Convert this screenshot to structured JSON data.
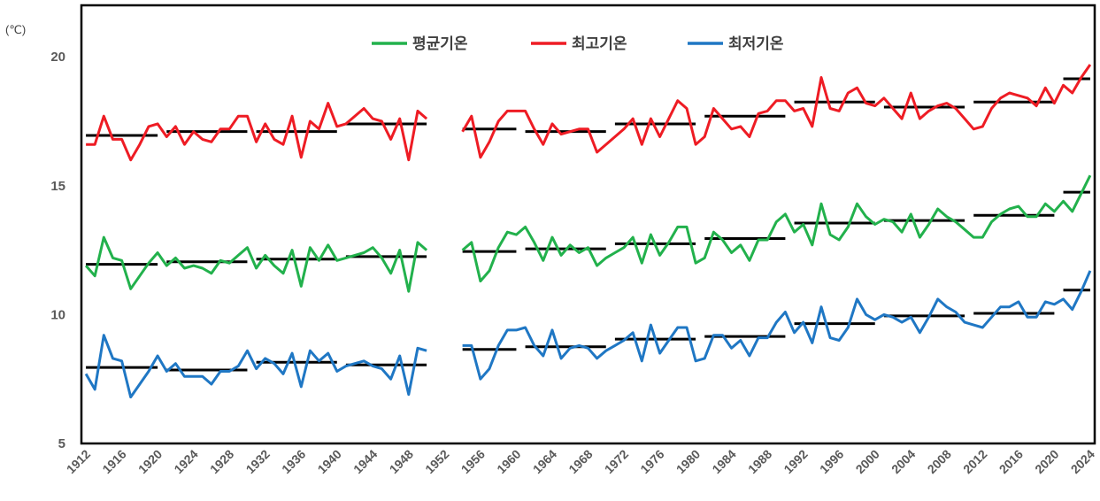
{
  "chart_data": {
    "type": "line",
    "unit_label": "(℃)",
    "title": "",
    "xlabel": "",
    "ylabel": "",
    "ylim": [
      5,
      22
    ],
    "y_ticks": [
      "20",
      "15",
      "10",
      "5"
    ],
    "y_tick_values": [
      20,
      15,
      10,
      5
    ],
    "x_range": [
      1912,
      2024
    ],
    "x_ticks": [
      "1912",
      "1916",
      "1920",
      "1924",
      "1928",
      "1932",
      "1936",
      "1940",
      "1944",
      "1948",
      "1952",
      "1956",
      "1960",
      "1964",
      "1968",
      "1972",
      "1976",
      "1980",
      "1984",
      "1988",
      "1992",
      "1996",
      "2000",
      "2004",
      "2008",
      "2012",
      "2016",
      "2020",
      "2024"
    ],
    "legend_position": "top-center",
    "grid": false,
    "colors": {
      "avg": "#22b14c",
      "max": "#ee1c24",
      "min": "#1f77c4",
      "decade": "#000000"
    },
    "series": [
      {
        "name": "평균기온",
        "key": "avg",
        "segments": [
          {
            "x": [
              1912,
              1913,
              1914,
              1915,
              1916,
              1917,
              1918,
              1919,
              1920,
              1921,
              1922,
              1923,
              1924,
              1925,
              1926,
              1927,
              1928,
              1929,
              1930,
              1931,
              1932,
              1933,
              1934,
              1935,
              1936,
              1937,
              1938,
              1939,
              1940,
              1941,
              1942,
              1943,
              1944,
              1945,
              1946,
              1947,
              1948,
              1949,
              1950
            ],
            "y": [
              11.9,
              11.5,
              13.0,
              12.2,
              12.1,
              11.0,
              11.5,
              12.0,
              12.4,
              11.9,
              12.2,
              11.8,
              11.9,
              11.8,
              11.6,
              12.1,
              12.0,
              12.3,
              12.6,
              11.8,
              12.3,
              11.9,
              11.6,
              12.5,
              11.1,
              12.6,
              12.1,
              12.7,
              12.1,
              12.2,
              12.3,
              12.4,
              12.6,
              12.2,
              11.6,
              12.5,
              10.9,
              12.8,
              12.5
            ]
          },
          {
            "x": [
              1954,
              1955,
              1956,
              1957,
              1958,
              1959,
              1960,
              1961,
              1962,
              1963,
              1964,
              1965,
              1966,
              1967,
              1968,
              1969,
              1970,
              1971,
              1972,
              1973,
              1974,
              1975,
              1976,
              1977,
              1978,
              1979,
              1980,
              1981,
              1982,
              1983,
              1984,
              1985,
              1986,
              1987,
              1988,
              1989,
              1990,
              1991,
              1992,
              1993,
              1994,
              1995,
              1996,
              1997,
              1998,
              1999,
              2000,
              2001,
              2002,
              2003,
              2004,
              2005,
              2006,
              2007,
              2008,
              2009,
              2010,
              2011,
              2012,
              2013,
              2014,
              2015,
              2016,
              2017,
              2018,
              2019,
              2020,
              2021,
              2022,
              2023,
              2024
            ],
            "y": [
              12.5,
              12.8,
              11.3,
              11.7,
              12.6,
              13.2,
              13.1,
              13.4,
              12.8,
              12.1,
              13.0,
              12.3,
              12.7,
              12.4,
              12.6,
              11.9,
              12.2,
              12.4,
              12.6,
              13.0,
              12.0,
              13.1,
              12.3,
              12.8,
              13.4,
              13.4,
              12.0,
              12.2,
              13.2,
              12.9,
              12.4,
              12.7,
              12.1,
              12.9,
              12.9,
              13.6,
              13.9,
              13.2,
              13.5,
              12.7,
              14.3,
              13.1,
              12.9,
              13.4,
              14.3,
              13.8,
              13.5,
              13.7,
              13.6,
              13.2,
              13.9,
              13.0,
              13.5,
              14.1,
              13.8,
              13.6,
              13.3,
              13.0,
              13.0,
              13.6,
              13.9,
              14.1,
              14.2,
              13.8,
              13.8,
              14.3,
              14.0,
              14.4,
              14.0,
              14.7,
              15.4
            ]
          }
        ]
      },
      {
        "name": "최고기온",
        "key": "max",
        "segments": [
          {
            "x": [
              1912,
              1913,
              1914,
              1915,
              1916,
              1917,
              1918,
              1919,
              1920,
              1921,
              1922,
              1923,
              1924,
              1925,
              1926,
              1927,
              1928,
              1929,
              1930,
              1931,
              1932,
              1933,
              1934,
              1935,
              1936,
              1937,
              1938,
              1939,
              1940,
              1941,
              1942,
              1943,
              1944,
              1945,
              1946,
              1947,
              1948,
              1949,
              1950
            ],
            "y": [
              16.6,
              16.6,
              17.7,
              16.8,
              16.8,
              16.0,
              16.6,
              17.3,
              17.4,
              16.9,
              17.3,
              16.6,
              17.1,
              16.8,
              16.7,
              17.2,
              17.2,
              17.7,
              17.7,
              16.7,
              17.4,
              16.8,
              16.6,
              17.7,
              16.1,
              17.5,
              17.2,
              18.2,
              17.3,
              17.4,
              17.7,
              18.0,
              17.6,
              17.5,
              16.8,
              17.6,
              16.0,
              17.9,
              17.6
            ]
          },
          {
            "x": [
              1954,
              1955,
              1956,
              1957,
              1958,
              1959,
              1960,
              1961,
              1962,
              1963,
              1964,
              1965,
              1966,
              1967,
              1968,
              1969,
              1970,
              1971,
              1972,
              1973,
              1974,
              1975,
              1976,
              1977,
              1978,
              1979,
              1980,
              1981,
              1982,
              1983,
              1984,
              1985,
              1986,
              1987,
              1988,
              1989,
              1990,
              1991,
              1992,
              1993,
              1994,
              1995,
              1996,
              1997,
              1998,
              1999,
              2000,
              2001,
              2002,
              2003,
              2004,
              2005,
              2006,
              2007,
              2008,
              2009,
              2010,
              2011,
              2012,
              2013,
              2014,
              2015,
              2016,
              2017,
              2018,
              2019,
              2020,
              2021,
              2022,
              2023,
              2024
            ],
            "y": [
              17.1,
              17.7,
              16.1,
              16.7,
              17.5,
              17.9,
              17.9,
              17.9,
              17.2,
              16.6,
              17.4,
              17.0,
              17.1,
              17.2,
              17.2,
              16.3,
              16.6,
              16.9,
              17.2,
              17.6,
              16.6,
              17.6,
              16.9,
              17.6,
              18.3,
              18.0,
              16.6,
              16.9,
              18.0,
              17.6,
              17.2,
              17.3,
              16.9,
              17.8,
              17.9,
              18.3,
              18.3,
              17.9,
              18.0,
              17.3,
              19.2,
              18.0,
              17.9,
              18.6,
              18.8,
              18.2,
              18.1,
              18.4,
              18.0,
              17.6,
              18.6,
              17.6,
              17.9,
              18.1,
              18.2,
              18.0,
              17.6,
              17.2,
              17.3,
              18.0,
              18.4,
              18.6,
              18.5,
              18.4,
              18.1,
              18.8,
              18.2,
              18.9,
              18.6,
              19.2,
              19.7
            ]
          }
        ]
      },
      {
        "name": "최저기온",
        "key": "min",
        "segments": [
          {
            "x": [
              1912,
              1913,
              1914,
              1915,
              1916,
              1917,
              1918,
              1919,
              1920,
              1921,
              1922,
              1923,
              1924,
              1925,
              1926,
              1927,
              1928,
              1929,
              1930,
              1931,
              1932,
              1933,
              1934,
              1935,
              1936,
              1937,
              1938,
              1939,
              1940,
              1941,
              1942,
              1943,
              1944,
              1945,
              1946,
              1947,
              1948,
              1949,
              1950
            ],
            "y": [
              7.7,
              7.1,
              9.2,
              8.3,
              8.2,
              6.8,
              7.3,
              7.8,
              8.4,
              7.8,
              8.1,
              7.6,
              7.6,
              7.6,
              7.3,
              7.8,
              7.8,
              8.0,
              8.6,
              7.9,
              8.3,
              8.1,
              7.7,
              8.5,
              7.2,
              8.6,
              8.2,
              8.5,
              7.8,
              8.0,
              8.1,
              8.2,
              8.0,
              7.9,
              7.5,
              8.4,
              6.9,
              8.7,
              8.6
            ]
          },
          {
            "x": [
              1954,
              1955,
              1956,
              1957,
              1958,
              1959,
              1960,
              1961,
              1962,
              1963,
              1964,
              1965,
              1966,
              1967,
              1968,
              1969,
              1970,
              1971,
              1972,
              1973,
              1974,
              1975,
              1976,
              1977,
              1978,
              1979,
              1980,
              1981,
              1982,
              1983,
              1984,
              1985,
              1986,
              1987,
              1988,
              1989,
              1990,
              1991,
              1992,
              1993,
              1994,
              1995,
              1996,
              1997,
              1998,
              1999,
              2000,
              2001,
              2002,
              2003,
              2004,
              2005,
              2006,
              2007,
              2008,
              2009,
              2010,
              2011,
              2012,
              2013,
              2014,
              2015,
              2016,
              2017,
              2018,
              2019,
              2020,
              2021,
              2022,
              2023,
              2024
            ],
            "y": [
              8.8,
              8.8,
              7.5,
              7.9,
              8.8,
              9.4,
              9.4,
              9.5,
              8.8,
              8.4,
              9.4,
              8.3,
              8.7,
              8.8,
              8.7,
              8.3,
              8.6,
              8.8,
              9.0,
              9.3,
              8.2,
              9.6,
              8.5,
              9.0,
              9.5,
              9.5,
              8.2,
              8.3,
              9.2,
              9.2,
              8.7,
              9.0,
              8.4,
              9.1,
              9.1,
              9.7,
              10.1,
              9.3,
              9.7,
              8.9,
              10.3,
              9.1,
              9.0,
              9.5,
              10.6,
              10.0,
              9.8,
              10.0,
              9.9,
              9.7,
              9.9,
              9.3,
              9.9,
              10.6,
              10.3,
              10.1,
              9.7,
              9.6,
              9.5,
              9.9,
              10.3,
              10.3,
              10.5,
              9.9,
              9.9,
              10.5,
              10.4,
              10.6,
              10.2,
              10.9,
              11.7
            ]
          }
        ]
      }
    ],
    "decade_means": [
      {
        "x0": 1912,
        "x1": 1920,
        "avg": 11.95,
        "max": 16.95,
        "min": 7.95
      },
      {
        "x0": 1921,
        "x1": 1930,
        "avg": 12.05,
        "max": 17.1,
        "min": 7.85
      },
      {
        "x0": 1931,
        "x1": 1940,
        "avg": 12.15,
        "max": 17.1,
        "min": 8.15
      },
      {
        "x0": 1941,
        "x1": 1950,
        "avg": 12.25,
        "max": 17.4,
        "min": 8.05
      },
      {
        "x0": 1954,
        "x1": 1960,
        "avg": 12.45,
        "max": 17.2,
        "min": 8.65
      },
      {
        "x0": 1961,
        "x1": 1970,
        "avg": 12.55,
        "max": 17.1,
        "min": 8.75
      },
      {
        "x0": 1971,
        "x1": 1980,
        "avg": 12.75,
        "max": 17.4,
        "min": 9.05
      },
      {
        "x0": 1981,
        "x1": 1990,
        "avg": 12.95,
        "max": 17.7,
        "min": 9.15
      },
      {
        "x0": 1991,
        "x1": 2000,
        "avg": 13.55,
        "max": 18.25,
        "min": 9.65
      },
      {
        "x0": 2001,
        "x1": 2010,
        "avg": 13.65,
        "max": 18.05,
        "min": 9.95
      },
      {
        "x0": 2011,
        "x1": 2020,
        "avg": 13.85,
        "max": 18.25,
        "min": 10.05
      },
      {
        "x0": 2021,
        "x1": 2024,
        "avg": 14.75,
        "max": 19.15,
        "min": 10.95
      }
    ]
  }
}
